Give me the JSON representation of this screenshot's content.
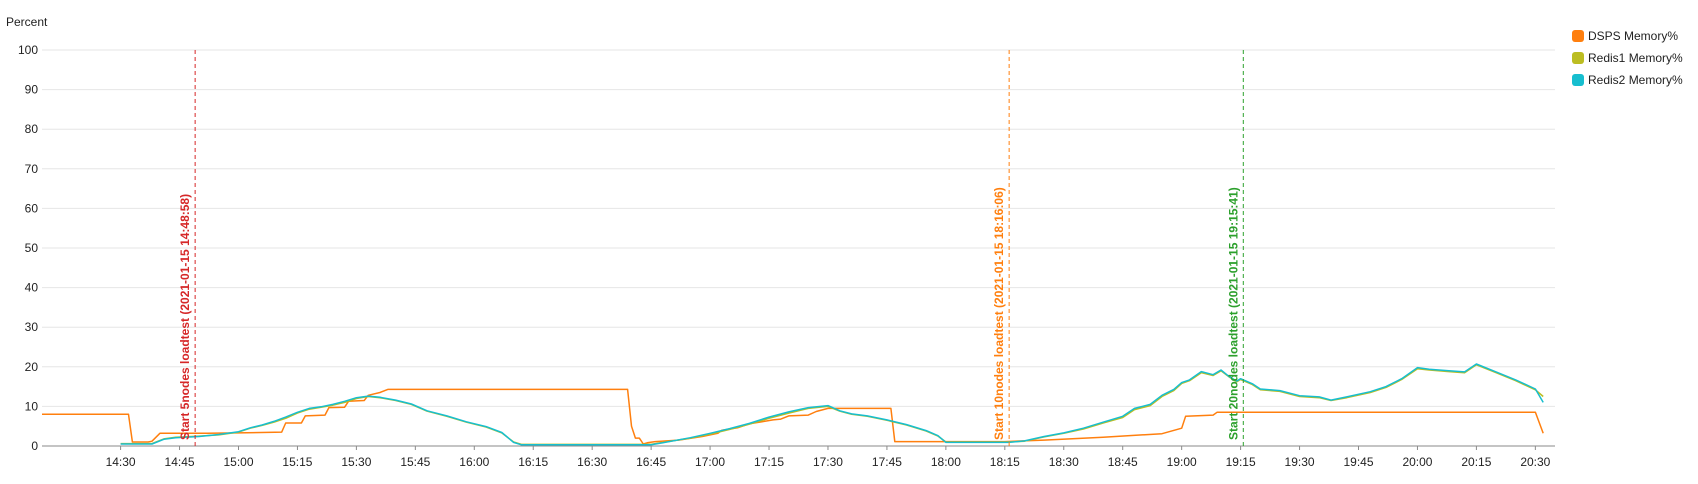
{
  "chart_data": {
    "type": "line",
    "title": "",
    "ylabel": "Percent",
    "xlabel": "",
    "ylim": [
      0,
      100
    ],
    "yticks": [
      0,
      10,
      20,
      30,
      40,
      50,
      60,
      70,
      80,
      90,
      100
    ],
    "xlim": [
      "14:10",
      "20:35"
    ],
    "xticks": [
      "14:30",
      "14:45",
      "15:00",
      "15:15",
      "15:30",
      "15:45",
      "16:00",
      "16:15",
      "16:30",
      "16:45",
      "17:00",
      "17:15",
      "17:30",
      "17:45",
      "18:00",
      "18:15",
      "18:30",
      "18:45",
      "19:00",
      "19:15",
      "19:30",
      "19:45",
      "20:00",
      "20:15",
      "20:30"
    ],
    "grid": true,
    "legend_position": "top-right",
    "series": [
      {
        "name": "DSPS Memory%",
        "color": "#ff7f0e",
        "points": [
          [
            "14:10",
            8
          ],
          [
            "14:32",
            8
          ],
          [
            "14:33",
            1
          ],
          [
            "14:37",
            1
          ],
          [
            "14:38",
            1.2
          ],
          [
            "14:40",
            3.2
          ],
          [
            "14:52",
            3.2
          ],
          [
            "15:00",
            3.3
          ],
          [
            "15:11",
            3.5
          ],
          [
            "15:12",
            5.8
          ],
          [
            "15:16",
            5.8
          ],
          [
            "15:17",
            7.6
          ],
          [
            "15:22",
            7.8
          ],
          [
            "15:23",
            9.7
          ],
          [
            "15:27",
            9.8
          ],
          [
            "15:28",
            11.3
          ],
          [
            "15:32",
            11.5
          ],
          [
            "15:33",
            12.8
          ],
          [
            "15:36",
            13.5
          ],
          [
            "15:38",
            14.3
          ],
          [
            "15:50",
            14.3
          ],
          [
            "16:00",
            14.3
          ],
          [
            "16:20",
            14.3
          ],
          [
            "16:39",
            14.3
          ],
          [
            "16:40",
            5
          ],
          [
            "16:41",
            2
          ],
          [
            "16:42",
            2
          ],
          [
            "16:43",
            0.5
          ],
          [
            "16:44",
            0.8
          ],
          [
            "16:46",
            1.1
          ],
          [
            "16:52",
            1.5
          ],
          [
            "16:58",
            2.4
          ],
          [
            "17:02",
            3.2
          ],
          [
            "17:03",
            4
          ],
          [
            "17:07",
            4.6
          ],
          [
            "17:10",
            5.6
          ],
          [
            "17:16",
            6.6
          ],
          [
            "17:18",
            6.8
          ],
          [
            "17:20",
            7.6
          ],
          [
            "17:25",
            7.8
          ],
          [
            "17:27",
            8.7
          ],
          [
            "17:30",
            9.5
          ],
          [
            "17:38",
            9.5
          ],
          [
            "17:46",
            9.5
          ],
          [
            "17:47",
            1.1
          ],
          [
            "18:00",
            1.1
          ],
          [
            "18:15",
            1.1
          ],
          [
            "18:25",
            1.5
          ],
          [
            "18:40",
            2.2
          ],
          [
            "18:55",
            3.1
          ],
          [
            "19:00",
            4.5
          ],
          [
            "19:01",
            7.5
          ],
          [
            "19:08",
            7.8
          ],
          [
            "19:09",
            8.5
          ],
          [
            "19:20",
            8.5
          ],
          [
            "19:30",
            8.5
          ],
          [
            "20:00",
            8.5
          ],
          [
            "20:30",
            8.5
          ],
          [
            "20:32",
            3.2
          ]
        ]
      },
      {
        "name": "Redis1 Memory%",
        "color": "#bcbd22",
        "points": [
          [
            "14:30",
            0.6
          ],
          [
            "14:35",
            0.6
          ],
          [
            "14:38",
            0.6
          ],
          [
            "14:41",
            1.8
          ],
          [
            "14:44",
            2.2
          ],
          [
            "14:50",
            2.5
          ],
          [
            "14:55",
            2.8
          ],
          [
            "15:00",
            3.5
          ],
          [
            "15:03",
            4.5
          ],
          [
            "15:06",
            5.2
          ],
          [
            "15:09",
            6
          ],
          [
            "15:12",
            7
          ],
          [
            "15:15",
            8.3
          ],
          [
            "15:18",
            9.3
          ],
          [
            "15:21",
            9.8
          ],
          [
            "15:24",
            10.3
          ],
          [
            "15:27",
            11
          ],
          [
            "15:30",
            12
          ],
          [
            "15:33",
            12.5
          ],
          [
            "15:36",
            12.2
          ],
          [
            "15:40",
            11.5
          ],
          [
            "15:44",
            10.5
          ],
          [
            "15:48",
            8.8
          ],
          [
            "15:53",
            7.5
          ],
          [
            "15:58",
            6
          ],
          [
            "16:03",
            4.8
          ],
          [
            "16:07",
            3.3
          ],
          [
            "16:10",
            1
          ],
          [
            "16:12",
            0.4
          ],
          [
            "16:20",
            0.4
          ],
          [
            "16:30",
            0.4
          ],
          [
            "16:40",
            0.4
          ],
          [
            "16:45",
            0.4
          ],
          [
            "16:48",
            0.9
          ],
          [
            "16:55",
            2
          ],
          [
            "17:00",
            3
          ],
          [
            "17:05",
            4.2
          ],
          [
            "17:10",
            5.5
          ],
          [
            "17:15",
            7
          ],
          [
            "17:20",
            8.3
          ],
          [
            "17:25",
            9.5
          ],
          [
            "17:30",
            10
          ],
          [
            "17:33",
            8.8
          ],
          [
            "17:36",
            8
          ],
          [
            "17:40",
            7.5
          ],
          [
            "17:45",
            6.5
          ],
          [
            "17:50",
            5.3
          ],
          [
            "17:55",
            3.8
          ],
          [
            "17:58",
            2.5
          ],
          [
            "18:00",
            1
          ],
          [
            "18:05",
            1
          ],
          [
            "18:12",
            1
          ],
          [
            "18:16",
            1
          ],
          [
            "18:20",
            1.2
          ],
          [
            "18:25",
            2.3
          ],
          [
            "18:30",
            3.2
          ],
          [
            "18:35",
            4.3
          ],
          [
            "18:40",
            5.8
          ],
          [
            "18:45",
            7.2
          ],
          [
            "18:48",
            9.2
          ],
          [
            "18:52",
            10.2
          ],
          [
            "18:55",
            12.5
          ],
          [
            "18:58",
            14
          ],
          [
            "19:00",
            15.8
          ],
          [
            "19:02",
            16.5
          ],
          [
            "19:05",
            18.5
          ],
          [
            "19:08",
            17.8
          ],
          [
            "19:10",
            19
          ],
          [
            "19:12",
            17.5
          ],
          [
            "19:14",
            16.2
          ],
          [
            "19:15",
            16.8
          ],
          [
            "19:18",
            15.5
          ],
          [
            "19:20",
            14.2
          ],
          [
            "19:25",
            13.8
          ],
          [
            "19:30",
            12.5
          ],
          [
            "19:35",
            12.2
          ],
          [
            "19:38",
            11.5
          ],
          [
            "19:42",
            12.2
          ],
          [
            "19:48",
            13.5
          ],
          [
            "19:52",
            14.8
          ],
          [
            "19:56",
            16.8
          ],
          [
            "20:00",
            19.5
          ],
          [
            "20:03",
            19.2
          ],
          [
            "20:08",
            18.8
          ],
          [
            "20:12",
            18.5
          ],
          [
            "20:15",
            20.5
          ],
          [
            "20:20",
            18.5
          ],
          [
            "20:25",
            16.5
          ],
          [
            "20:30",
            14.2
          ],
          [
            "20:32",
            12.5
          ]
        ]
      },
      {
        "name": "Redis2 Memory%",
        "color": "#17becf",
        "points": [
          [
            "14:30",
            0.5
          ],
          [
            "14:35",
            0.5
          ],
          [
            "14:38",
            0.5
          ],
          [
            "14:41",
            1.7
          ],
          [
            "14:44",
            2.1
          ],
          [
            "14:50",
            2.4
          ],
          [
            "14:55",
            2.9
          ],
          [
            "15:00",
            3.6
          ],
          [
            "15:03",
            4.6
          ],
          [
            "15:06",
            5.3
          ],
          [
            "15:09",
            6.2
          ],
          [
            "15:12",
            7.3
          ],
          [
            "15:15",
            8.5
          ],
          [
            "15:18",
            9.5
          ],
          [
            "15:21",
            9.9
          ],
          [
            "15:24",
            10.5
          ],
          [
            "15:27",
            11.3
          ],
          [
            "15:30",
            12.2
          ],
          [
            "15:33",
            12.6
          ],
          [
            "15:36",
            12.3
          ],
          [
            "15:40",
            11.6
          ],
          [
            "15:44",
            10.6
          ],
          [
            "15:48",
            8.9
          ],
          [
            "15:53",
            7.6
          ],
          [
            "15:58",
            6.1
          ],
          [
            "16:03",
            4.9
          ],
          [
            "16:07",
            3.4
          ],
          [
            "16:10",
            0.9
          ],
          [
            "16:12",
            0.3
          ],
          [
            "16:20",
            0.3
          ],
          [
            "16:30",
            0.3
          ],
          [
            "16:40",
            0.3
          ],
          [
            "16:45",
            0.3
          ],
          [
            "16:48",
            0.8
          ],
          [
            "16:55",
            2.1
          ],
          [
            "17:00",
            3.2
          ],
          [
            "17:05",
            4.4
          ],
          [
            "17:10",
            5.7
          ],
          [
            "17:15",
            7.3
          ],
          [
            "17:20",
            8.6
          ],
          [
            "17:25",
            9.7
          ],
          [
            "17:30",
            10.2
          ],
          [
            "17:33",
            8.9
          ],
          [
            "17:36",
            8.1
          ],
          [
            "17:40",
            7.6
          ],
          [
            "17:45",
            6.6
          ],
          [
            "17:50",
            5.4
          ],
          [
            "17:55",
            3.9
          ],
          [
            "17:58",
            2.6
          ],
          [
            "18:00",
            0.9
          ],
          [
            "18:05",
            0.9
          ],
          [
            "18:12",
            0.9
          ],
          [
            "18:16",
            0.9
          ],
          [
            "18:20",
            1.3
          ],
          [
            "18:25",
            2.4
          ],
          [
            "18:30",
            3.3
          ],
          [
            "18:35",
            4.5
          ],
          [
            "18:40",
            6
          ],
          [
            "18:45",
            7.5
          ],
          [
            "18:48",
            9.5
          ],
          [
            "18:52",
            10.5
          ],
          [
            "18:55",
            12.8
          ],
          [
            "18:58",
            14.3
          ],
          [
            "19:00",
            16
          ],
          [
            "19:02",
            16.7
          ],
          [
            "19:05",
            18.8
          ],
          [
            "19:08",
            18
          ],
          [
            "19:10",
            19.2
          ],
          [
            "19:12",
            17.6
          ],
          [
            "19:14",
            16.4
          ],
          [
            "19:15",
            17
          ],
          [
            "19:18",
            15.7
          ],
          [
            "19:20",
            14.4
          ],
          [
            "19:25",
            14
          ],
          [
            "19:30",
            12.7
          ],
          [
            "19:35",
            12.4
          ],
          [
            "19:38",
            11.6
          ],
          [
            "19:42",
            12.4
          ],
          [
            "19:48",
            13.7
          ],
          [
            "19:52",
            15
          ],
          [
            "19:56",
            17
          ],
          [
            "20:00",
            19.8
          ],
          [
            "20:03",
            19.4
          ],
          [
            "20:08",
            19
          ],
          [
            "20:12",
            18.7
          ],
          [
            "20:15",
            20.7
          ],
          [
            "20:20",
            18.7
          ],
          [
            "20:25",
            16.7
          ],
          [
            "20:30",
            14.4
          ],
          [
            "20:32",
            11
          ]
        ]
      }
    ],
    "annotations": [
      {
        "x": "14:48:58",
        "label": "Start 5nodes loadtest (2021-01-15 14:48:58)",
        "color": "#d62728"
      },
      {
        "x": "18:16:06",
        "label": "Start 10nodes loadtest (2021-01-15 18:16:06)",
        "color": "#ff7f0e"
      },
      {
        "x": "19:15:41",
        "label": "Start 20nodes loadtest (2021-01-15 19:15:41)",
        "color": "#2ca02c"
      }
    ]
  }
}
